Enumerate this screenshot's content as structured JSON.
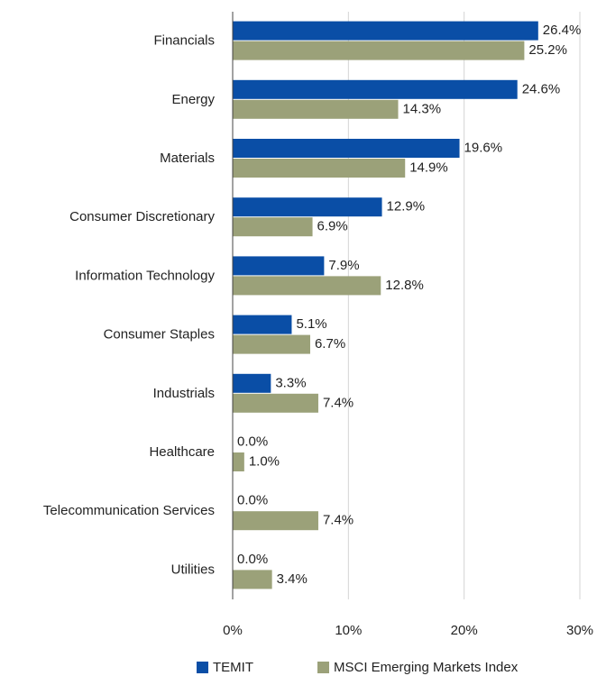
{
  "chart_data": {
    "type": "bar",
    "orientation": "horizontal",
    "categories": [
      "Financials",
      "Energy",
      "Materials",
      "Consumer Discretionary",
      "Information Technology",
      "Consumer Staples",
      "Industrials",
      "Healthcare",
      "Telecommunication Services",
      "Utilities"
    ],
    "series": [
      {
        "name": "TEMIT",
        "color": "#0a4ea6",
        "values": [
          26.4,
          24.6,
          19.6,
          12.9,
          7.9,
          5.1,
          3.3,
          0.0,
          0.0,
          0.0
        ],
        "value_labels": [
          "26.4%",
          "24.6%",
          "19.6%",
          "12.9%",
          "7.9%",
          "5.1%",
          "3.3%",
          "0.0%",
          "0.0%",
          "0.0%"
        ]
      },
      {
        "name": "MSCI Emerging Markets Index",
        "color": "#9ba179",
        "values": [
          25.2,
          14.3,
          14.9,
          6.9,
          12.8,
          6.7,
          7.4,
          1.0,
          7.4,
          3.4
        ],
        "value_labels": [
          "25.2%",
          "14.3%",
          "14.9%",
          "6.9%",
          "12.8%",
          "6.7%",
          "7.4%",
          "1.0%",
          "7.4%",
          "3.4%"
        ]
      }
    ],
    "xlim": [
      0,
      30
    ],
    "xticks": [
      {
        "value": 0,
        "label": "0%"
      },
      {
        "value": 10,
        "label": "10%"
      },
      {
        "value": 20,
        "label": "20%"
      },
      {
        "value": 30,
        "label": "30%"
      }
    ],
    "grid": true,
    "legend": "bottom"
  }
}
